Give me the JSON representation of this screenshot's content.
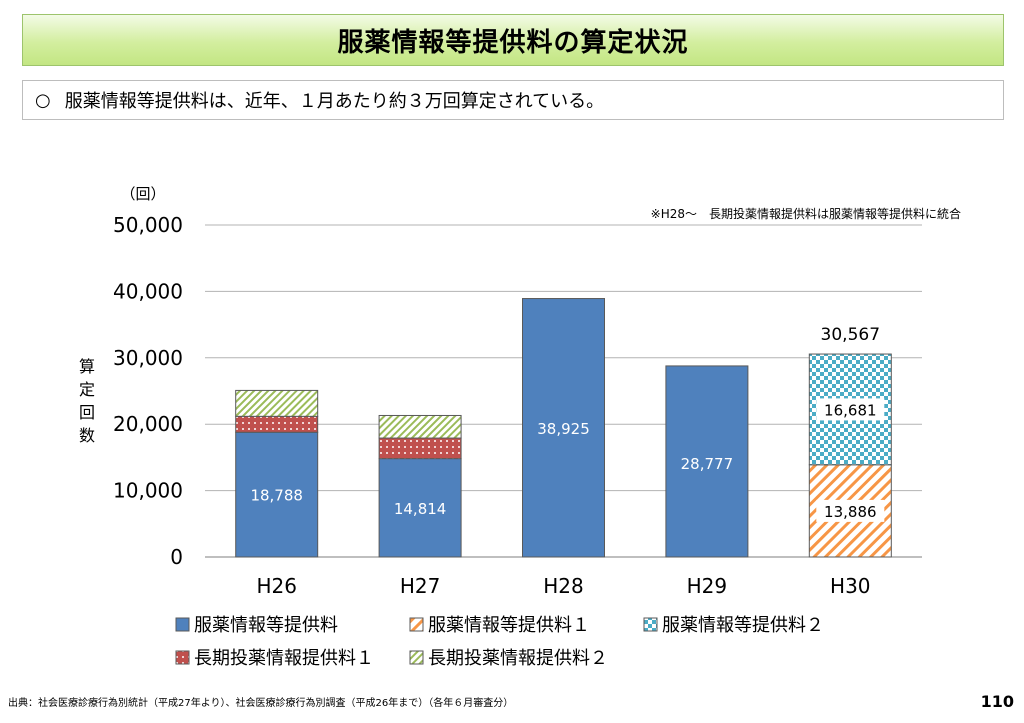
{
  "slide": {
    "title": "服薬情報等提供料の算定状況",
    "summary_bullet": "○",
    "summary_text": "服薬情報等提供料は、近年、１月あたり約３万回算定されている。",
    "source": "出典：社会医療診療行為別統計（平成27年より）、社会医療診療行為別調査（平成26年まで）（各年６月審査分）",
    "page_number": "110"
  },
  "chart_data": {
    "type": "bar",
    "stacked": true,
    "categories": [
      "H26",
      "H27",
      "H28",
      "H29",
      "H30"
    ],
    "y_unit": "（回）",
    "ylabel": "算定回数",
    "ylim": [
      0,
      50000
    ],
    "yticks": [
      0,
      10000,
      20000,
      30000,
      40000,
      50000
    ],
    "ytick_labels": [
      "0",
      "10,000",
      "20,000",
      "30,000",
      "40,000",
      "50,000"
    ],
    "grid": true,
    "note": "※H28～　長期投薬情報提供料は服薬情報等提供料に統合",
    "series": [
      {
        "name": "服薬情報等提供料",
        "color": "#4f81bd",
        "pattern": "solid",
        "values": [
          18788,
          14814,
          38925,
          28777,
          null
        ],
        "labels": [
          "18,788",
          "14,814",
          "38,925",
          "28,777",
          ""
        ]
      },
      {
        "name": "服薬情報等提供料１",
        "color": "#f79646",
        "pattern": "diagonal-stripes",
        "values": [
          null,
          null,
          null,
          null,
          13886
        ],
        "labels": [
          "",
          "",
          "",
          "",
          "13,886"
        ]
      },
      {
        "name": "服薬情報等提供料２",
        "color": "#4bacc6",
        "pattern": "checker",
        "values": [
          null,
          null,
          null,
          null,
          16681
        ],
        "labels": [
          "",
          "",
          "",
          "",
          "16,681"
        ]
      },
      {
        "name": "長期投薬情報提供料１",
        "color": "#c0504d",
        "pattern": "dots",
        "values": [
          2400,
          3100,
          null,
          null,
          null
        ],
        "labels": [
          "",
          "",
          "",
          "",
          ""
        ]
      },
      {
        "name": "長期投薬情報提供料２",
        "color": "#9bbb59",
        "pattern": "diagonal-hatch",
        "values": [
          3900,
          3400,
          null,
          null,
          null
        ],
        "labels": [
          "",
          "",
          "",
          "",
          ""
        ]
      }
    ],
    "totals": [
      "",
      "",
      "",
      "",
      "30,567"
    ],
    "legend_position": "bottom",
    "legend_rows": [
      [
        "服薬情報等提供料",
        "服薬情報等提供料１",
        "服薬情報等提供料２"
      ],
      [
        "長期投薬情報提供料１",
        "長期投薬情報提供料２"
      ]
    ]
  }
}
